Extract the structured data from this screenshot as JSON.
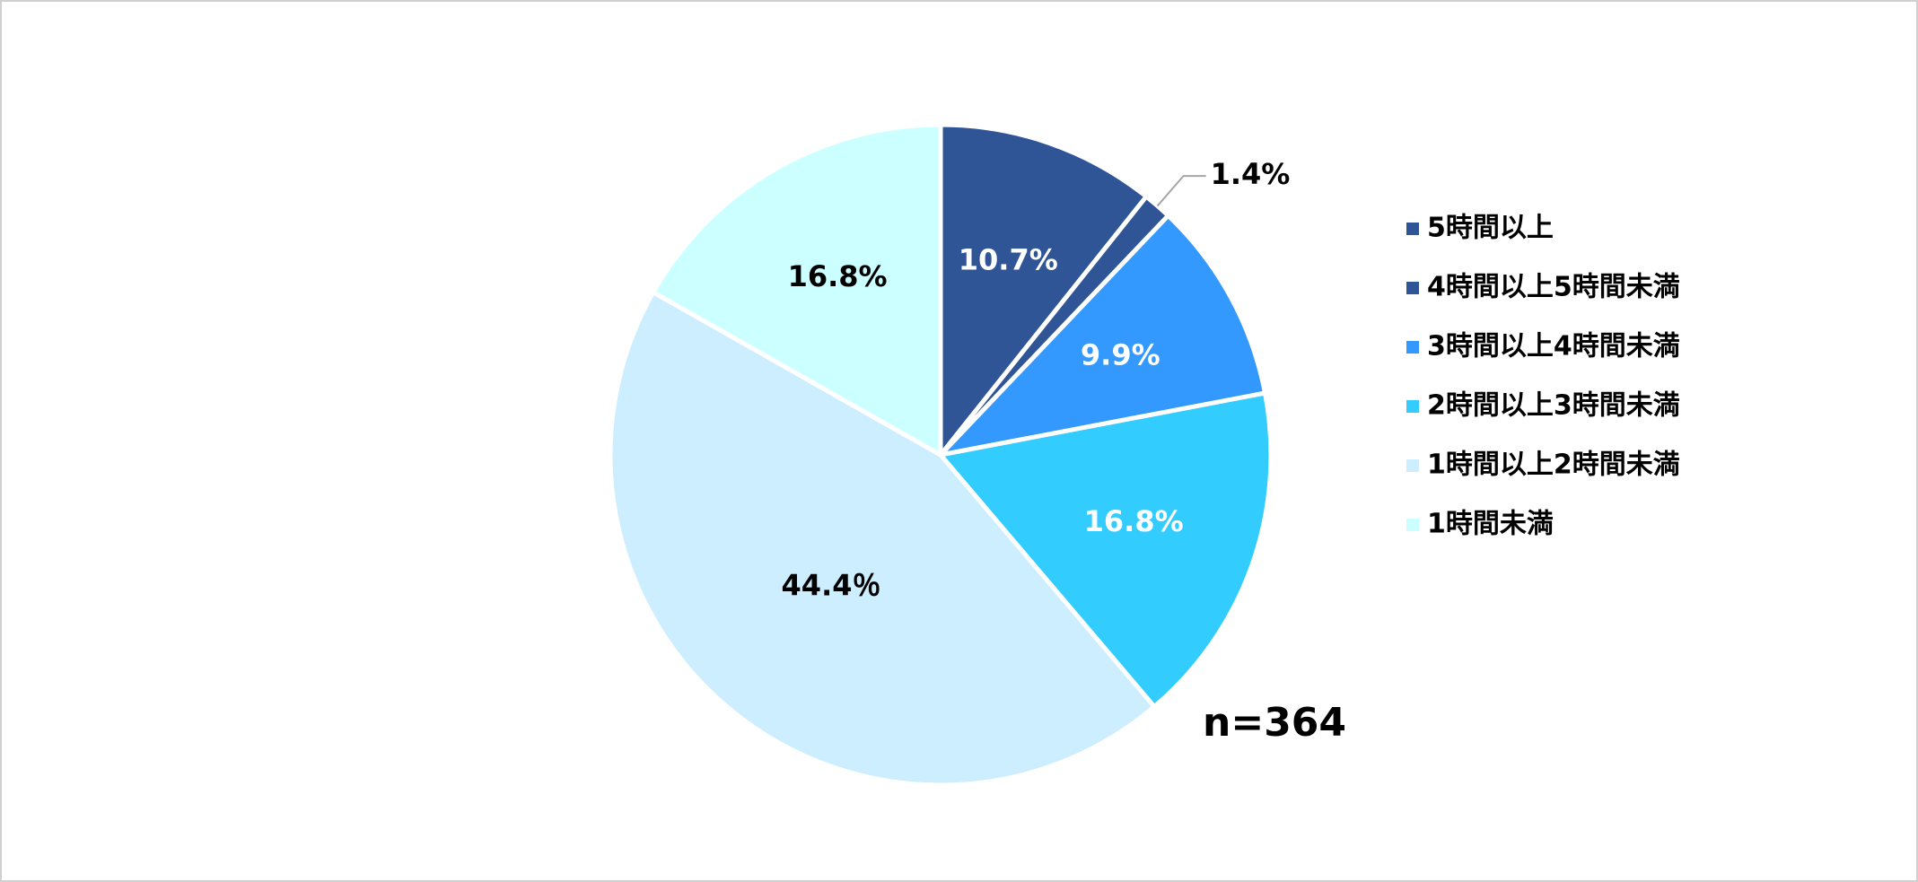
{
  "chart_data": {
    "type": "pie",
    "categories": [
      "5時間以上",
      "4時間以上5時間未満",
      "3時間以上4時間未満",
      "2時間以上3時間未満",
      "1時間以上2時間未満",
      "1時間未満"
    ],
    "values": [
      10.7,
      1.4,
      9.9,
      16.8,
      44.4,
      16.8
    ],
    "value_labels": [
      "10.7%",
      "1.4%",
      "9.9%",
      "16.8%",
      "44.4％",
      "16.8%"
    ],
    "colors": [
      "#2f5597",
      "#2f5597",
      "#3399ff",
      "#33ccff",
      "#cceeff",
      "#ccffff"
    ],
    "annotation": "n=364",
    "legend": "right"
  }
}
